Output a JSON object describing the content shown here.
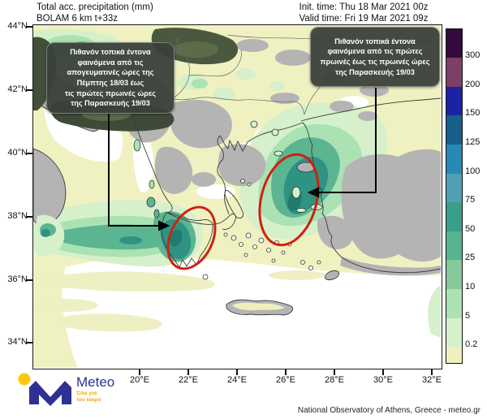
{
  "header": {
    "title_line1": "Total acc. precipitation (mm)",
    "title_line2": "BOLAM 6 km t+33z",
    "init_time": "Init. time: Thu 18 Mar 2021 00z",
    "valid_time": "Valid time: Fri 19 Mar 2021 09z"
  },
  "map": {
    "lat_labels": [
      "44°N",
      "42°N",
      "40°N",
      "38°N",
      "36°N",
      "34°N"
    ],
    "lon_labels": [
      "20°E",
      "22°E",
      "24°E",
      "26°E",
      "28°E",
      "30°E",
      "32°E"
    ],
    "annotation_left": "Πιθανόν τοπικά έντονα\nφαινόμενα από τις\nαπογευματινές ώρες της\nΠέμπτης 18/03 έως\nτις πρώτες πρωινές ώρες\nτης Παρασκευής 19/03",
    "annotation_right": "Πιθανόν τοπικά έντονα\nφαινόμενα από τις πρώτες\nπρωινές έως τις πρωινές ώρες\nτης Παρασκευής 19/03",
    "highlight_color": "#d02010"
  },
  "colorbar": {
    "tick_labels": [
      "300",
      "200",
      "150",
      "125",
      "100",
      "75",
      "50",
      "25",
      "10",
      "5",
      "0.2"
    ],
    "band_colors": [
      "#340a3e",
      "#7d3f66",
      "#1c23a2",
      "#175f8d",
      "#2a88b6",
      "#4fa0b4",
      "#3a9e8a",
      "#58b48e",
      "#85c99c",
      "#abe2b4",
      "#d5f0cb",
      "#eff0bd",
      "#ffffff"
    ]
  },
  "footer": {
    "logo_text": "Meteo",
    "tagline1": "Όλα για",
    "tagline2": "τον καιρό",
    "attribution": "National Observatory of Athens, Greece - meteo.gr",
    "logo_blue": "#2e3192",
    "logo_yellow": "#fec80e"
  }
}
